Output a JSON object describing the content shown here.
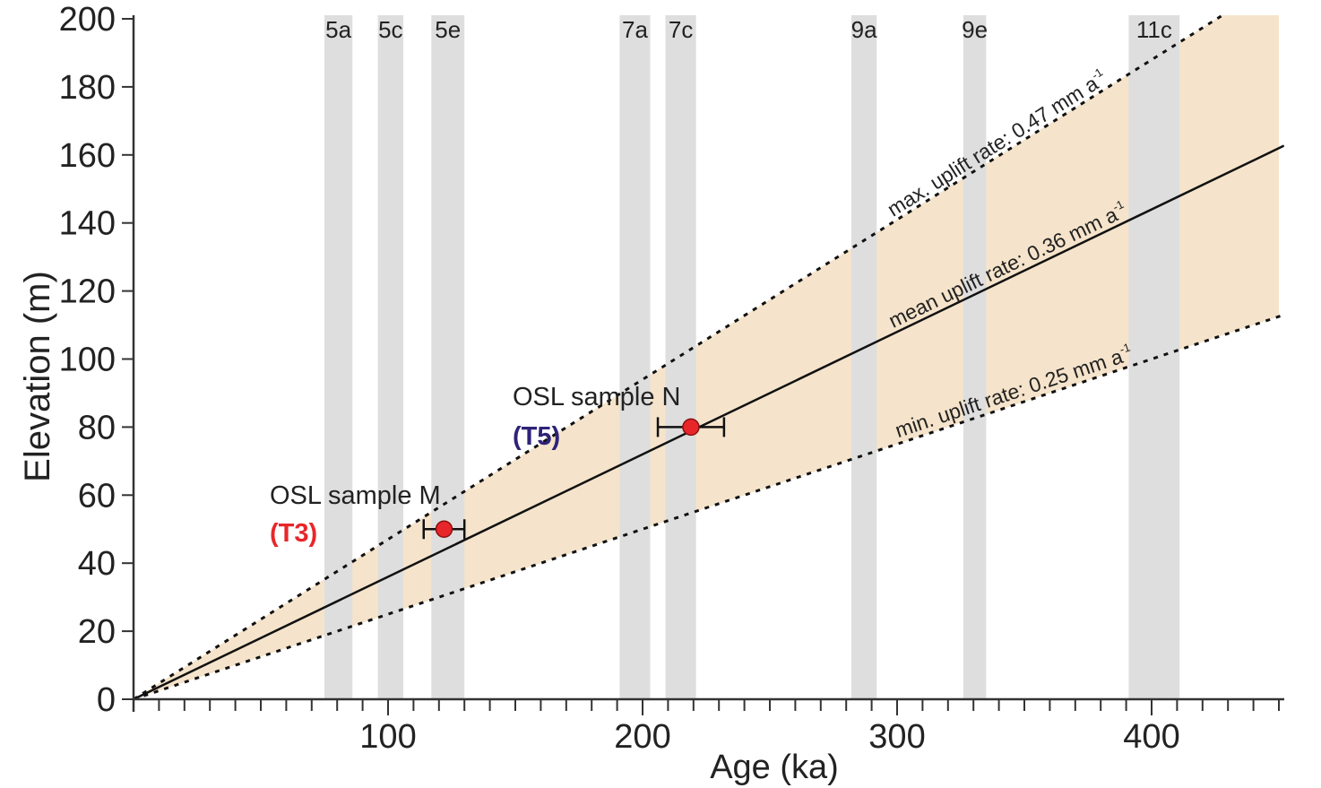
{
  "chart_data": {
    "type": "line",
    "title": "",
    "xlabel": "Age (ka)",
    "ylabel": "Elevation (m)",
    "xlim": [
      0,
      452
    ],
    "ylim": [
      0,
      200
    ],
    "x_ticks": [
      100,
      200,
      300,
      400
    ],
    "x_minor_tick_step": 10,
    "y_ticks": [
      0,
      20,
      40,
      60,
      80,
      100,
      120,
      140,
      160,
      180,
      200
    ],
    "grid": false,
    "series": [
      {
        "name": "max. uplift rate: 0.47 mm a",
        "superscript": "-1",
        "rate": 0.47,
        "x": [
          0,
          452
        ],
        "y": [
          0,
          212.4
        ],
        "style": "dotted"
      },
      {
        "name": "mean uplift rate: 0.36 mm a",
        "superscript": "-1",
        "rate": 0.36,
        "x": [
          0,
          452
        ],
        "y": [
          0,
          162.7
        ],
        "style": "solid"
      },
      {
        "name": "min. uplift rate: 0.25 mm a",
        "superscript": "-1",
        "rate": 0.25,
        "x": [
          0,
          452
        ],
        "y": [
          0,
          113
        ],
        "style": "dotted"
      }
    ],
    "uplift_envelope_color": "#f5e4cb",
    "marine_isotope_stages": [
      {
        "label": "5a",
        "from": 75,
        "to": 86
      },
      {
        "label": "5c",
        "from": 96,
        "to": 106
      },
      {
        "label": "5e",
        "from": 117,
        "to": 130
      },
      {
        "label": "7a",
        "from": 191,
        "to": 203
      },
      {
        "label": "7c",
        "from": 209,
        "to": 221
      },
      {
        "label": "9a",
        "from": 282,
        "to": 292
      },
      {
        "label": "9e",
        "from": 326,
        "to": 335
      },
      {
        "label": "11c",
        "from": 391,
        "to": 411
      }
    ],
    "stage_color": "#dedede",
    "points": [
      {
        "label": "OSL sample M",
        "terrace": "(T3)",
        "terrace_color": "#e8262a",
        "age": 122,
        "age_min": 114,
        "age_max": 130,
        "elevation": 50
      },
      {
        "label": "OSL sample N",
        "terrace": "(T5)",
        "terrace_color": "#2e2378",
        "age": 219,
        "age_min": 206,
        "age_max": 232,
        "elevation": 80
      }
    ],
    "point_color": "#e8262a"
  }
}
